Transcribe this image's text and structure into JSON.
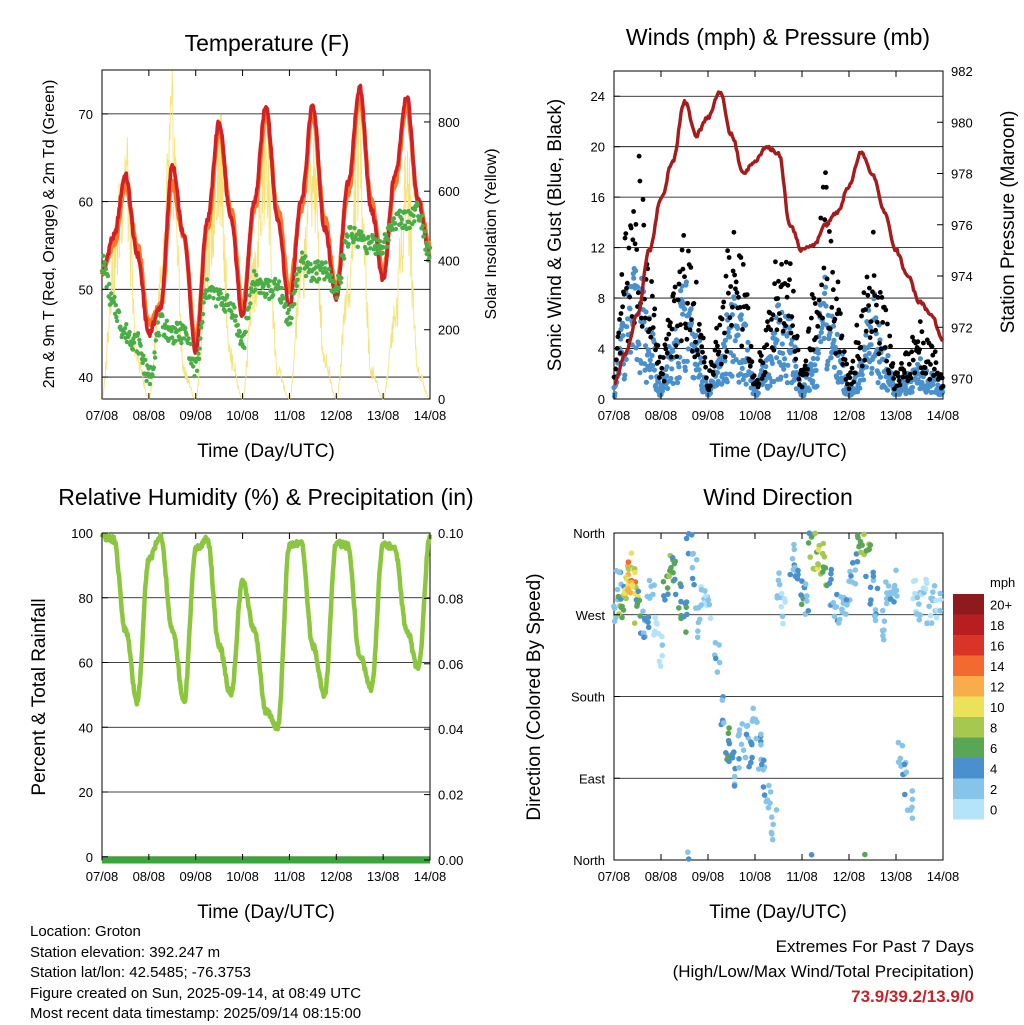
{
  "palette": {
    "temp2m": "#d42024",
    "temp9m": "#f47a2a",
    "dewpoint": "#4aad46",
    "solar": "#f6e37a",
    "gust": "#000000",
    "wind": "#4a90cd",
    "pressure": "#a51c1c",
    "rh": "#8cc63f",
    "precip": "#3aa53a",
    "speed_scale": [
      "#b5e3f7",
      "#86c4ea",
      "#4a90cd",
      "#5aa657",
      "#a7c84f",
      "#ece25a",
      "#f8ac4a",
      "#f26a2f",
      "#d93427",
      "#b81d21",
      "#8e1a1e"
    ]
  },
  "time_ticks": [
    "07/08",
    "08/08",
    "09/08",
    "10/08",
    "11/08",
    "12/08",
    "13/08",
    "14/08"
  ],
  "charts": {
    "temperature": {
      "title": "Temperature (F)",
      "xlabel": "Time (Day/UTC)",
      "ylabel": "2m & 9m T (Red, Orange) & 2m Td (Green)",
      "y2label": "Solar Insolation (Yellow)",
      "yticks": [
        "40",
        "50",
        "60",
        "70"
      ],
      "y2ticks": [
        "0",
        "200",
        "400",
        "600",
        "800"
      ]
    },
    "winds": {
      "title": "Winds (mph) & Pressure (mb)",
      "xlabel": "Time (Day/UTC)",
      "ylabel": "Sonic Wind & Gust (Blue, Black)",
      "y2label": "Station Pressure (Maroon)",
      "yticks": [
        "0",
        "4",
        "8",
        "12",
        "16",
        "20",
        "24"
      ],
      "y2ticks": [
        "970",
        "972",
        "974",
        "976",
        "978",
        "980",
        "982"
      ]
    },
    "humidity": {
      "title": "Relative Humidity (%) & Precipitation (in)",
      "xlabel": "Time (Day/UTC)",
      "ylabel": "Percent & Total Rainfall",
      "yticks": [
        "0",
        "20",
        "40",
        "60",
        "80",
        "100"
      ],
      "y2ticks": [
        "0.00",
        "0.02",
        "0.04",
        "0.06",
        "0.08",
        "0.10"
      ]
    },
    "direction": {
      "title": "Wind Direction",
      "xlabel": "Time (Day/UTC)",
      "ylabel": "Direction (Colored By Speed)",
      "yticks": [
        "North",
        "East",
        "South",
        "West",
        "North"
      ],
      "legend_title": "mph",
      "legend_labels": [
        "0",
        "2",
        "4",
        "6",
        "8",
        "10",
        "12",
        "14",
        "16",
        "18",
        "20+"
      ]
    }
  },
  "chart_data": [
    {
      "type": "line",
      "title": "Temperature (F)",
      "xlabel": "Time (Day/UTC)",
      "ylabel": "2m & 9m T (Red, Orange) & 2m Td (Green)",
      "y2label": "Solar Insolation (Yellow)",
      "x": [
        0,
        0.25,
        0.5,
        0.75,
        1,
        1.25,
        1.5,
        1.75,
        2,
        2.25,
        2.5,
        2.75,
        3,
        3.25,
        3.5,
        3.75,
        4,
        4.25,
        4.5,
        4.75,
        5,
        5.25,
        5.5,
        5.75,
        6,
        6.25,
        6.5,
        6.75,
        7
      ],
      "xlim": [
        0,
        7
      ],
      "ylim": [
        37.5,
        75
      ],
      "y2lim": [
        0,
        950
      ],
      "series": [
        {
          "name": "2m T",
          "values": [
            52,
            56,
            63,
            54,
            45,
            48,
            64,
            56,
            43,
            58,
            69,
            58,
            47,
            60,
            71,
            58,
            48,
            60,
            71,
            57,
            49,
            62,
            73,
            59,
            51,
            63,
            72,
            60,
            54
          ]
        },
        {
          "name": "9m T",
          "values": [
            52,
            55,
            62,
            55,
            46,
            48,
            62,
            56,
            44,
            57,
            68,
            59,
            48,
            59,
            70,
            59,
            50,
            59,
            70,
            58,
            50,
            61,
            72,
            60,
            52,
            62,
            71,
            60,
            55
          ]
        },
        {
          "name": "2m Td",
          "values": [
            53,
            48,
            45,
            44,
            40,
            46,
            45,
            45,
            41,
            50,
            49,
            48,
            44,
            51,
            50,
            50,
            47,
            53,
            52,
            52,
            50,
            56,
            56,
            55,
            55,
            58,
            58,
            59,
            54
          ]
        },
        {
          "name": "Solar",
          "values": [
            0,
            500,
            850,
            150,
            0,
            400,
            950,
            100,
            0,
            500,
            900,
            150,
            0,
            450,
            850,
            100,
            0,
            450,
            850,
            150,
            0,
            400,
            900,
            100,
            0,
            300,
            800,
            100,
            0
          ]
        }
      ]
    },
    {
      "type": "line",
      "title": "Winds (mph) & Pressure (mb)",
      "xlabel": "Time (Day/UTC)",
      "ylabel": "Sonic Wind & Gust (Blue, Black)",
      "y2label": "Station Pressure (Maroon)",
      "x": [
        0,
        0.25,
        0.5,
        0.75,
        1,
        1.25,
        1.5,
        1.75,
        2,
        2.25,
        2.5,
        2.75,
        3,
        3.25,
        3.5,
        3.75,
        4,
        4.25,
        4.5,
        4.75,
        5,
        5.25,
        5.5,
        5.75,
        6,
        6.25,
        6.5,
        6.75,
        7
      ],
      "xlim": [
        0,
        7
      ],
      "ylim": [
        0,
        26
      ],
      "y2lim": [
        969.2,
        982
      ],
      "series": [
        {
          "name": "Sonic Wind",
          "values": [
            1,
            8,
            10,
            6,
            1,
            5,
            9,
            5,
            1,
            3,
            8,
            6,
            1,
            3,
            7,
            6,
            1,
            4,
            9,
            5,
            1,
            3,
            8,
            4,
            1,
            2,
            3,
            2,
            1
          ]
        },
        {
          "name": "Gust",
          "values": [
            2,
            12,
            18,
            10,
            3,
            8,
            14,
            9,
            2,
            6,
            13,
            10,
            2,
            6,
            12,
            10,
            2,
            8,
            17,
            9,
            2,
            7,
            13,
            7,
            2,
            4,
            6,
            4,
            2
          ]
        },
        {
          "name": "Pressure",
          "values": [
            969.8,
            971,
            972.5,
            975,
            977,
            978.5,
            980.8,
            979.5,
            980.2,
            981.2,
            979.5,
            978,
            978.5,
            979,
            978.8,
            976,
            975,
            975.2,
            976,
            976.5,
            977.5,
            978.8,
            978,
            976.5,
            975,
            974,
            973,
            972.5,
            971.5
          ]
        }
      ]
    },
    {
      "type": "line",
      "title": "Relative Humidity (%) & Precipitation (in)",
      "xlabel": "Time (Day/UTC)",
      "ylabel": "Percent & Total Rainfall",
      "x": [
        0,
        0.25,
        0.5,
        0.75,
        1,
        1.25,
        1.5,
        1.75,
        2,
        2.25,
        2.5,
        2.75,
        3,
        3.25,
        3.5,
        3.75,
        4,
        4.25,
        4.5,
        4.75,
        5,
        5.25,
        5.5,
        5.75,
        6,
        6.25,
        6.5,
        6.75,
        7
      ],
      "xlim": [
        0,
        7
      ],
      "ylim": [
        -1,
        100
      ],
      "y2lim": [
        0,
        0.1
      ],
      "series": [
        {
          "name": "RH",
          "values": [
            99,
            98,
            70,
            48,
            92,
            99,
            70,
            48,
            95,
            98,
            65,
            50,
            85,
            70,
            45,
            40,
            96,
            97,
            65,
            50,
            97,
            96,
            62,
            52,
            97,
            95,
            70,
            58,
            99
          ]
        },
        {
          "name": "Precip",
          "values": [
            0,
            0,
            0,
            0,
            0,
            0,
            0,
            0,
            0,
            0,
            0,
            0,
            0,
            0,
            0,
            0,
            0,
            0,
            0,
            0,
            0,
            0,
            0,
            0,
            0,
            0,
            0,
            0,
            0
          ]
        }
      ]
    },
    {
      "type": "scatter",
      "title": "Wind Direction",
      "xlabel": "Time (Day/UTC)",
      "ylabel": "Direction (Colored By Speed)",
      "xlim": [
        0,
        7
      ],
      "ylim": [
        0,
        360
      ],
      "legend_title": "mph",
      "note": "points colored by wind speed",
      "points": [
        [
          0.05,
          280,
          2
        ],
        [
          0.1,
          300,
          3
        ],
        [
          0.15,
          270,
          6
        ],
        [
          0.2,
          285,
          8
        ],
        [
          0.25,
          300,
          10
        ],
        [
          0.3,
          310,
          12
        ],
        [
          0.35,
          320,
          13
        ],
        [
          0.4,
          305,
          11
        ],
        [
          0.45,
          295,
          9
        ],
        [
          0.5,
          280,
          7
        ],
        [
          0.6,
          260,
          3
        ],
        [
          0.7,
          275,
          4
        ],
        [
          0.8,
          290,
          2
        ],
        [
          0.9,
          250,
          1
        ],
        [
          1.0,
          230,
          1
        ],
        [
          1.1,
          300,
          5
        ],
        [
          1.2,
          330,
          7
        ],
        [
          1.3,
          310,
          6
        ],
        [
          1.4,
          285,
          5
        ],
        [
          1.5,
          270,
          6
        ],
        [
          1.6,
          350,
          4
        ],
        [
          1.7,
          320,
          3
        ],
        [
          1.8,
          260,
          2
        ],
        [
          1.9,
          300,
          1
        ],
        [
          2.0,
          280,
          1
        ],
        [
          2.2,
          220,
          3
        ],
        [
          2.3,
          160,
          4
        ],
        [
          2.4,
          130,
          6
        ],
        [
          2.5,
          120,
          5
        ],
        [
          2.6,
          100,
          4
        ],
        [
          2.7,
          140,
          3
        ],
        [
          2.8,
          130,
          3
        ],
        [
          2.9,
          110,
          4
        ],
        [
          3.0,
          150,
          2
        ],
        [
          3.1,
          120,
          3
        ],
        [
          3.2,
          90,
          4
        ],
        [
          3.3,
          70,
          3
        ],
        [
          3.4,
          40,
          2
        ],
        [
          3.5,
          300,
          2
        ],
        [
          3.6,
          280,
          1
        ],
        [
          3.8,
          330,
          3
        ],
        [
          3.9,
          310,
          4
        ],
        [
          4.0,
          300,
          5
        ],
        [
          4.1,
          290,
          3
        ],
        [
          4.2,
          350,
          7
        ],
        [
          4.3,
          340,
          9
        ],
        [
          4.4,
          330,
          10
        ],
        [
          4.5,
          320,
          8
        ],
        [
          4.6,
          300,
          4
        ],
        [
          4.7,
          280,
          3
        ],
        [
          4.8,
          270,
          2
        ],
        [
          4.9,
          290,
          2
        ],
        [
          5.0,
          300,
          3
        ],
        [
          5.1,
          310,
          4
        ],
        [
          5.2,
          340,
          6
        ],
        [
          5.3,
          350,
          7
        ],
        [
          5.4,
          330,
          6
        ],
        [
          5.5,
          300,
          4
        ],
        [
          5.6,
          280,
          3
        ],
        [
          5.7,
          260,
          2
        ],
        [
          5.8,
          290,
          2
        ],
        [
          5.9,
          280,
          3
        ],
        [
          6.0,
          300,
          2
        ],
        [
          6.1,
          120,
          2
        ],
        [
          6.2,
          90,
          3
        ],
        [
          6.3,
          60,
          2
        ],
        [
          6.4,
          290,
          1
        ],
        [
          6.5,
          280,
          2
        ],
        [
          6.6,
          300,
          1
        ],
        [
          6.7,
          270,
          1
        ],
        [
          6.8,
          290,
          2
        ],
        [
          6.9,
          280,
          1
        ]
      ]
    }
  ],
  "info": {
    "location": "Location: Groton",
    "elevation": "Station elevation: 392.247 m",
    "latlon": "Station lat/lon: 42.5485; -76.3753",
    "created": "Figure created on Sun, 2025-09-14, at 08:49 UTC",
    "recent": "Most recent data timestamp: 2025/09/14 08:15:00"
  },
  "extremes": {
    "line1": "Extremes For Past 7 Days",
    "line2": "(High/Low/Max Wind/Total Precipitation)",
    "values": "73.9/39.2/13.9/0"
  }
}
